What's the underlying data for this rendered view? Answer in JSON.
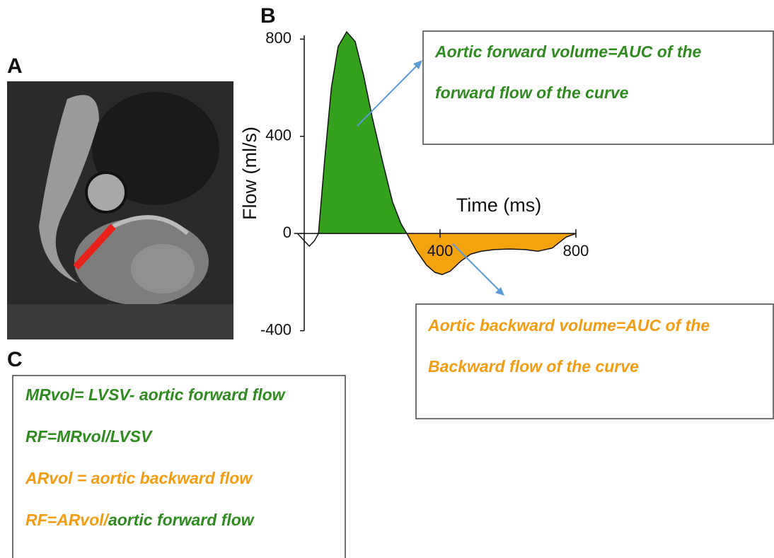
{
  "panels": {
    "a": {
      "label": "A"
    },
    "b": {
      "label": "B"
    },
    "c": {
      "label": "C"
    }
  },
  "chart_data": {
    "type": "area",
    "xlabel": "Time (ms)",
    "ylabel": "Flow (ml/s)",
    "x": [
      -20,
      0,
      15,
      30,
      42,
      60,
      80,
      100,
      125,
      150,
      175,
      200,
      230,
      260,
      285,
      302,
      330,
      360,
      385,
      406,
      430,
      460,
      490,
      521,
      560,
      604,
      650,
      688,
      730,
      771,
      800
    ],
    "values": [
      0,
      -30,
      -52,
      -30,
      0,
      300,
      600,
      770,
      830,
      790,
      650,
      480,
      300,
      130,
      40,
      0,
      -70,
      -130,
      -160,
      -169,
      -155,
      -115,
      -85,
      -73,
      -66,
      -64,
      -66,
      -73,
      -60,
      -15,
      0
    ],
    "positive_color": "#33a11c",
    "negative_color": "#f5a30c",
    "line_color": "#111111",
    "xlim": [
      -30,
      800
    ],
    "ylim": [
      -400,
      830
    ],
    "xticks": [
      400,
      800
    ],
    "yticks": [
      -400,
      0,
      400,
      800
    ],
    "annotations": [
      {
        "lines": [
          "Aortic forward volume=AUC of the",
          "forward flow of the curve"
        ],
        "color": "#2e8b1e"
      },
      {
        "lines": [
          "Aortic backward volume=AUC of the",
          "Backward flow of the curve"
        ],
        "color": "#f39c12"
      }
    ]
  },
  "formulas": [
    [
      {
        "text": "MRvol= LVSV- aortic forward flow",
        "color": "#2e8b1e"
      }
    ],
    [
      {
        "text": "RF=MRvol/LVSV",
        "color": "#2e8b1e"
      }
    ],
    [
      {
        "text": "ARvol = aortic backward flow",
        "color": "#f39c12"
      }
    ],
    [
      {
        "text": "RF=ARvol/",
        "color": "#f39c12"
      },
      {
        "text": "aortic forward flow",
        "color": "#2e8b1e"
      }
    ]
  ]
}
